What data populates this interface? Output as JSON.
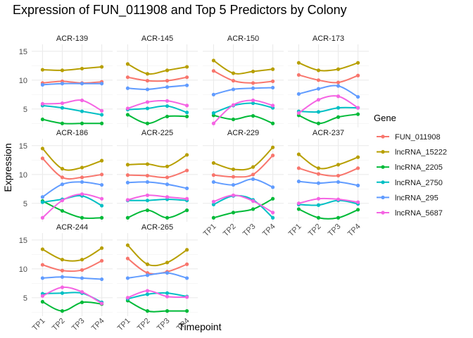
{
  "chart_data": {
    "type": "line",
    "title": "Expression of FUN_011908 and Top 5 Predictors by Colony",
    "xlabel": "Timepoint",
    "ylabel": "Expression",
    "categories": [
      "TP1",
      "TP2",
      "TP3",
      "TP4"
    ],
    "ylim": [
      1.8,
      16.2
    ],
    "yticks": [
      5,
      10,
      15
    ],
    "grid": true,
    "legend_title": "Gene",
    "legend_position": "right",
    "series_meta": [
      {
        "name": "FUN_011908",
        "color": "#F8766D"
      },
      {
        "name": "lncRNA_15222",
        "color": "#B79F00"
      },
      {
        "name": "lncRNA_2205",
        "color": "#00BA38"
      },
      {
        "name": "lncRNA_2750",
        "color": "#00BFC4"
      },
      {
        "name": "lncRNA_295",
        "color": "#619CFF"
      },
      {
        "name": "lncRNA_5687",
        "color": "#F564E3"
      }
    ],
    "panels": [
      {
        "label": "ACR-139",
        "values": {
          "FUN_011908": [
            9.5,
            9.8,
            9.5,
            9.7
          ],
          "lncRNA_15222": [
            11.8,
            11.7,
            12.0,
            12.3
          ],
          "lncRNA_2205": [
            3.2,
            2.5,
            2.5,
            2.5
          ],
          "lncRNA_2750": [
            5.6,
            5.2,
            4.6,
            4.0
          ],
          "lncRNA_295": [
            9.2,
            9.4,
            9.4,
            9.4
          ],
          "lncRNA_5687": [
            5.9,
            6.0,
            6.5,
            4.7
          ]
        }
      },
      {
        "label": "ACR-145",
        "values": {
          "FUN_011908": [
            10.5,
            9.9,
            9.9,
            10.5
          ],
          "lncRNA_15222": [
            12.8,
            11.1,
            11.7,
            12.3
          ],
          "lncRNA_2205": [
            4.0,
            2.5,
            3.7,
            3.7
          ],
          "lncRNA_2750": [
            4.9,
            5.1,
            5.5,
            4.4
          ],
          "lncRNA_295": [
            8.6,
            8.4,
            8.8,
            9.1
          ],
          "lncRNA_5687": [
            5.1,
            6.2,
            6.4,
            5.6
          ]
        }
      },
      {
        "label": "ACR-150",
        "values": {
          "FUN_011908": [
            11.6,
            9.9,
            9.5,
            9.8
          ],
          "lncRNA_15222": [
            13.4,
            11.2,
            11.5,
            11.9
          ],
          "lncRNA_2205": [
            3.9,
            3.2,
            3.8,
            2.5
          ],
          "lncRNA_2750": [
            4.3,
            5.6,
            6.0,
            5.2
          ],
          "lncRNA_295": [
            7.5,
            8.4,
            8.6,
            8.7
          ],
          "lncRNA_5687": [
            2.5,
            5.7,
            6.5,
            5.6
          ]
        }
      },
      {
        "label": "ACR-173",
        "values": {
          "FUN_011908": [
            10.9,
            10.0,
            9.6,
            10.8
          ],
          "lncRNA_15222": [
            13.0,
            11.7,
            11.9,
            13.0
          ],
          "lncRNA_2205": [
            3.9,
            2.5,
            3.6,
            4.1
          ],
          "lncRNA_2750": [
            4.6,
            4.5,
            5.2,
            5.2
          ],
          "lncRNA_295": [
            7.6,
            8.5,
            9.0,
            7.1
          ],
          "lncRNA_5687": [
            4.3,
            6.6,
            7.2,
            5.2
          ]
        }
      },
      {
        "label": "ACR-186",
        "values": {
          "FUN_011908": [
            12.8,
            9.5,
            9.5,
            10.0
          ],
          "lncRNA_15222": [
            14.5,
            11.0,
            11.2,
            12.4
          ],
          "lncRNA_2205": [
            5.4,
            3.7,
            2.5,
            2.5
          ],
          "lncRNA_2750": [
            5.2,
            5.7,
            6.3,
            4.6
          ],
          "lncRNA_295": [
            6.1,
            8.3,
            8.7,
            8.2
          ],
          "lncRNA_5687": [
            2.5,
            5.5,
            6.6,
            5.8
          ]
        }
      },
      {
        "label": "ACR-225",
        "values": {
          "FUN_011908": [
            9.9,
            9.8,
            9.5,
            10.7
          ],
          "lncRNA_15222": [
            11.7,
            11.8,
            11.4,
            13.4
          ],
          "lncRNA_2205": [
            2.5,
            3.8,
            2.5,
            3.8
          ],
          "lncRNA_2750": [
            5.5,
            5.5,
            5.7,
            5.5
          ],
          "lncRNA_295": [
            8.6,
            8.7,
            8.3,
            7.6
          ],
          "lncRNA_5687": [
            5.6,
            6.4,
            6.1,
            5.8
          ]
        }
      },
      {
        "label": "ACR-229",
        "values": {
          "FUN_011908": [
            9.9,
            9.6,
            10.0,
            13.3
          ],
          "lncRNA_15222": [
            12.0,
            10.9,
            11.3,
            14.7
          ],
          "lncRNA_2205": [
            2.5,
            3.4,
            4.0,
            5.8
          ],
          "lncRNA_2750": [
            4.8,
            6.3,
            5.6,
            2.5
          ],
          "lncRNA_295": [
            8.7,
            8.2,
            9.2,
            7.8
          ],
          "lncRNA_5687": [
            5.3,
            6.4,
            5.4,
            3.4
          ]
        }
      },
      {
        "label": "ACR-237",
        "values": {
          "FUN_011908": [
            11.1,
            10.1,
            9.8,
            11.1
          ],
          "lncRNA_15222": [
            13.5,
            11.1,
            11.7,
            13.0
          ],
          "lncRNA_2205": [
            4.0,
            2.5,
            2.5,
            3.9
          ],
          "lncRNA_2750": [
            4.8,
            4.7,
            5.5,
            4.9
          ],
          "lncRNA_295": [
            8.8,
            8.5,
            8.7,
            8.1
          ],
          "lncRNA_5687": [
            5.0,
            5.8,
            5.7,
            5.2
          ]
        }
      },
      {
        "label": "ACR-244",
        "values": {
          "FUN_011908": [
            10.7,
            9.7,
            9.8,
            11.4
          ],
          "lncRNA_15222": [
            13.4,
            11.6,
            11.6,
            13.6
          ],
          "lncRNA_2205": [
            4.3,
            2.7,
            4.2,
            3.9
          ],
          "lncRNA_2750": [
            5.7,
            5.8,
            5.8,
            4.2
          ],
          "lncRNA_295": [
            8.4,
            8.6,
            8.4,
            8.2
          ],
          "lncRNA_5687": [
            5.3,
            6.8,
            6.0,
            4.0
          ]
        }
      },
      {
        "label": "ACR-265",
        "values": {
          "FUN_011908": [
            11.8,
            9.3,
            9.5,
            10.8
          ],
          "lncRNA_15222": [
            14.1,
            10.8,
            11.1,
            13.3
          ],
          "lncRNA_2205": [
            4.5,
            2.7,
            2.7,
            2.7
          ],
          "lncRNA_2750": [
            4.8,
            5.6,
            5.8,
            5.2
          ],
          "lncRNA_295": [
            8.4,
            8.9,
            9.3,
            8.4
          ],
          "lncRNA_5687": [
            5.0,
            6.2,
            5.2,
            5.1
          ]
        }
      }
    ]
  }
}
